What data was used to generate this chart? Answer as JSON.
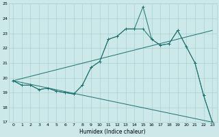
{
  "xlabel": "Humidex (Indice chaleur)",
  "xlim_min": -0.5,
  "xlim_max": 23.5,
  "ylim_min": 17,
  "ylim_max": 25,
  "yticks": [
    17,
    18,
    19,
    20,
    21,
    22,
    23,
    24,
    25
  ],
  "xticks": [
    0,
    1,
    2,
    3,
    4,
    5,
    6,
    7,
    8,
    9,
    10,
    11,
    12,
    13,
    14,
    15,
    16,
    17,
    18,
    19,
    20,
    21,
    22,
    23
  ],
  "bg_color": "#cce8e8",
  "grid_color": "#aad0d0",
  "line_color": "#1a7070",
  "line1_x": [
    0,
    1,
    2,
    3,
    4,
    5,
    6,
    7,
    8,
    9,
    10,
    11,
    12,
    13,
    14,
    15,
    16,
    17,
    18,
    19,
    20,
    21,
    22,
    23
  ],
  "line1_y": [
    19.8,
    19.5,
    19.5,
    19.2,
    19.3,
    19.1,
    19.0,
    18.9,
    19.5,
    20.7,
    21.1,
    22.6,
    22.8,
    23.3,
    23.3,
    23.3,
    22.6,
    22.2,
    22.3,
    23.2,
    22.1,
    21.0,
    18.8,
    17.0
  ],
  "line2_x": [
    0,
    1,
    2,
    3,
    4,
    5,
    6,
    7,
    8,
    9,
    10,
    11,
    12,
    13,
    14,
    15,
    16,
    17,
    18,
    19,
    20,
    21,
    22,
    23
  ],
  "line2_y": [
    19.8,
    19.5,
    19.5,
    19.2,
    19.3,
    19.1,
    19.0,
    18.9,
    19.5,
    20.7,
    21.1,
    22.6,
    22.8,
    23.3,
    23.3,
    24.8,
    22.6,
    22.2,
    22.3,
    23.2,
    22.1,
    21.0,
    18.8,
    17.0
  ],
  "line3_x": [
    0,
    23
  ],
  "line3_y": [
    19.8,
    23.2
  ],
  "line4_x": [
    0,
    23
  ],
  "line4_y": [
    19.8,
    17.0
  ]
}
